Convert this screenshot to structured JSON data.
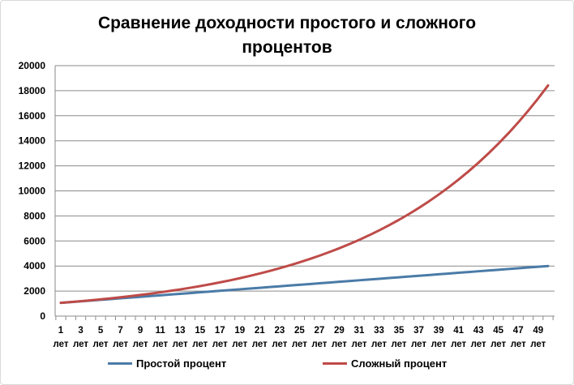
{
  "chart_data": {
    "type": "line",
    "title_lines": [
      "Сравнение доходности простого и сложного",
      "процентов"
    ],
    "xlabel": "",
    "ylabel": "",
    "ylim": [
      0,
      20000
    ],
    "yticks": [
      0,
      2000,
      4000,
      6000,
      8000,
      10000,
      12000,
      14000,
      16000,
      18000,
      20000
    ],
    "x_tick_numbers": [
      "1",
      "3",
      "5",
      "7",
      "9",
      "11",
      "13",
      "15",
      "17",
      "19",
      "21",
      "23",
      "25",
      "27",
      "29",
      "31",
      "33",
      "35",
      "37",
      "39",
      "41",
      "43",
      "45",
      "47",
      "49"
    ],
    "x_tick_unit": "лет",
    "x": [
      1,
      2,
      3,
      4,
      5,
      6,
      7,
      8,
      9,
      10,
      11,
      12,
      13,
      14,
      15,
      16,
      17,
      18,
      19,
      20,
      21,
      22,
      23,
      24,
      25,
      26,
      27,
      28,
      29,
      30,
      31,
      32,
      33,
      34,
      35,
      36,
      37,
      38,
      39,
      40,
      41,
      42,
      43,
      44,
      45,
      46,
      47,
      48,
      49,
      50
    ],
    "grid": "horizontal",
    "legend_position": "bottom",
    "series": [
      {
        "name": "Простой процент",
        "color": "#4a7ba7",
        "values": [
          1060,
          1120,
          1180,
          1240,
          1300,
          1360,
          1420,
          1480,
          1540,
          1600,
          1660,
          1720,
          1780,
          1840,
          1900,
          1960,
          2020,
          2080,
          2140,
          2200,
          2260,
          2320,
          2380,
          2440,
          2500,
          2560,
          2620,
          2680,
          2740,
          2800,
          2860,
          2920,
          2980,
          3040,
          3100,
          3160,
          3220,
          3280,
          3340,
          3400,
          3460,
          3520,
          3580,
          3640,
          3700,
          3760,
          3820,
          3880,
          3940,
          4000
        ]
      },
      {
        "name": "Сложный процент",
        "color": "#be4b48",
        "values": [
          1060,
          1124,
          1191,
          1262,
          1338,
          1419,
          1504,
          1594,
          1689,
          1791,
          1898,
          2012,
          2133,
          2261,
          2397,
          2540,
          2693,
          2854,
          3026,
          3207,
          3400,
          3604,
          3820,
          4049,
          4292,
          4549,
          4822,
          5112,
          5418,
          5743,
          6088,
          6453,
          6841,
          7251,
          7686,
          8147,
          8636,
          9154,
          9704,
          10286,
          10903,
          11557,
          12250,
          12985,
          13765,
          14590,
          15466,
          16394,
          17378,
          18420
        ]
      }
    ]
  }
}
